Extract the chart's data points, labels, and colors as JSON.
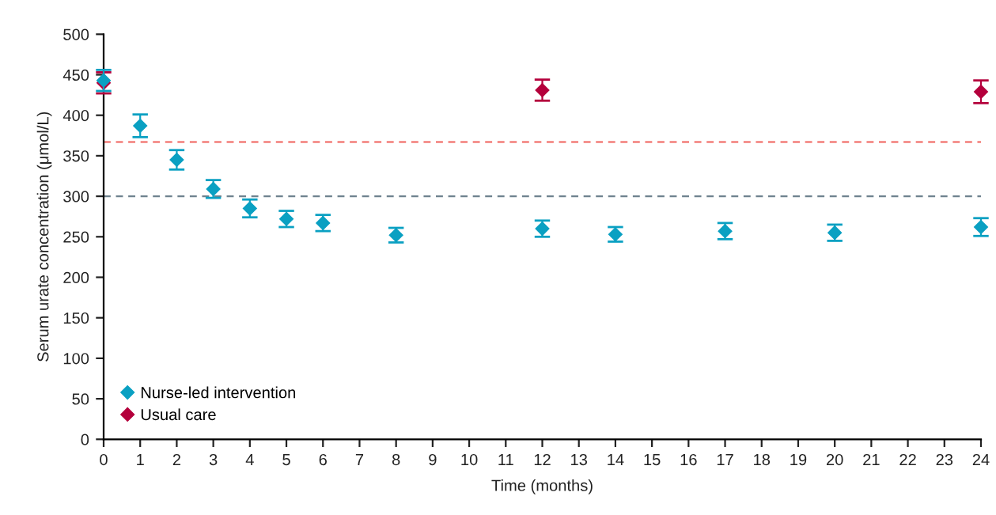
{
  "chart_data": {
    "type": "scatter",
    "xlabel": "Time (months)",
    "ylabel": "Serum urate concentration (μmol/L)",
    "xlim": [
      0,
      24
    ],
    "xticks": [
      0,
      1,
      2,
      3,
      4,
      5,
      6,
      7,
      8,
      9,
      10,
      11,
      12,
      13,
      14,
      15,
      16,
      17,
      18,
      19,
      20,
      21,
      22,
      23,
      24
    ],
    "ylim": [
      0,
      500
    ],
    "yticks": [
      0,
      50,
      100,
      150,
      200,
      250,
      300,
      350,
      400,
      450,
      500
    ],
    "marker": "diamond",
    "legend": "bottom left",
    "series": [
      {
        "name": "Nurse-led intervention",
        "color": "#0aa0c2",
        "x": [
          0,
          1,
          2,
          3,
          4,
          5,
          6,
          8,
          12,
          14,
          17,
          20,
          24
        ],
        "values": [
          443,
          387,
          345,
          309,
          285,
          272,
          267,
          252,
          260,
          253,
          257,
          255,
          262
        ],
        "errors": [
          13,
          14,
          12,
          11,
          11,
          10,
          10,
          9,
          10,
          9,
          10,
          10,
          11
        ]
      },
      {
        "name": "Usual care",
        "color": "#b4003c",
        "x": [
          0,
          12,
          24
        ],
        "values": [
          440,
          431,
          429
        ],
        "errors": [
          13,
          13,
          14
        ]
      }
    ],
    "ref_lines": [
      {
        "axis": "y",
        "value": 367,
        "color": "#f0605a",
        "line_style": "dashed"
      },
      {
        "axis": "y",
        "value": 300,
        "color": "#6e828e",
        "line_style": "dashed"
      }
    ]
  }
}
